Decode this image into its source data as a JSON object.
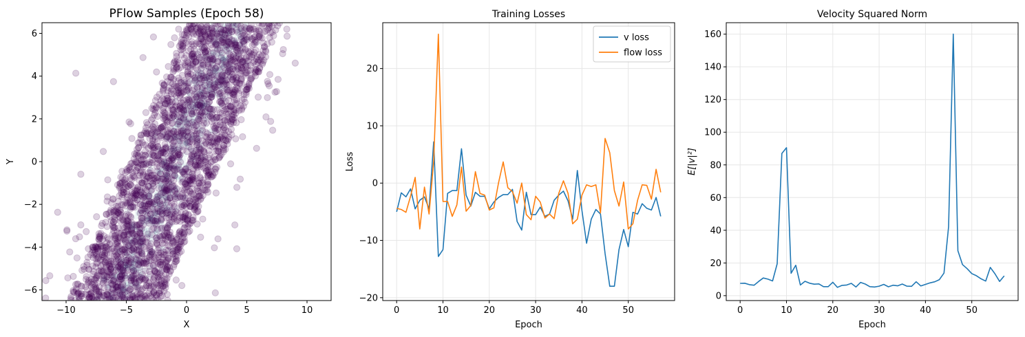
{
  "chart_data": [
    {
      "type": "scatter",
      "title": "PFlow Samples (Epoch 58)",
      "xlabel": "X",
      "ylabel": "Y",
      "xlim": [
        -12,
        12
      ],
      "ylim": [
        -6.5,
        6.5
      ],
      "xticks": [
        -10,
        -5,
        0,
        5,
        10
      ],
      "yticks": [
        -6,
        -4,
        -2,
        0,
        2,
        4,
        6
      ],
      "grid": false,
      "colors": {
        "sample": "#440154",
        "core": "#2a7f8e"
      },
      "band": {
        "center_line": [
          [
            -6.0,
            -6.5
          ],
          [
            4.0,
            6.5
          ]
        ],
        "half_width_x": 3.8
      }
    },
    {
      "type": "line",
      "title": "Training Losses",
      "xlabel": "Epoch",
      "ylabel": "Loss",
      "xlim": [
        -3,
        60
      ],
      "ylim": [
        -20.5,
        28
      ],
      "xticks": [
        0,
        10,
        20,
        30,
        40,
        50
      ],
      "yticks": [
        -20,
        -10,
        0,
        10,
        20
      ],
      "grid": true,
      "legend": "top-right",
      "series": [
        {
          "name": "v loss",
          "color": "#1f77b4",
          "values": [
            -5.0,
            -1.7,
            -2.4,
            -1.0,
            -4.5,
            -3.0,
            -2.4,
            -4.5,
            7.2,
            -12.8,
            -11.6,
            -1.8,
            -1.3,
            -1.3,
            6.0,
            -2.1,
            -4.0,
            -1.6,
            -2.3,
            -2.3,
            -4.5,
            -3.3,
            -2.5,
            -2.0,
            -2.0,
            -1.1,
            -6.7,
            -8.2,
            -1.6,
            -5.5,
            -5.5,
            -4.2,
            -5.8,
            -5.4,
            -3.0,
            -2.1,
            -1.4,
            -3.1,
            -6.3,
            2.2,
            -4.8,
            -10.5,
            -6.3,
            -4.6,
            -5.4,
            -12.3,
            -18.0,
            -18.0,
            -11.6,
            -8.1,
            -11.1,
            -5.1,
            -5.4,
            -3.6,
            -4.4,
            -4.7,
            -2.5,
            -5.8
          ]
        },
        {
          "name": "flow loss",
          "color": "#ff7f0e",
          "values": [
            -4.4,
            -4.6,
            -5.1,
            -2.3,
            1.0,
            -8.0,
            -0.7,
            -5.4,
            3.8,
            26.0,
            -3.2,
            -3.2,
            -5.8,
            -3.8,
            2.8,
            -4.9,
            -3.9,
            2.0,
            -1.8,
            -2.1,
            -4.7,
            -4.3,
            0.1,
            3.7,
            -0.8,
            -1.5,
            -3.5,
            0.0,
            -5.5,
            -6.4,
            -2.3,
            -3.3,
            -6.1,
            -5.4,
            -6.2,
            -1.8,
            0.4,
            -1.8,
            -7.1,
            -6.3,
            -2.1,
            -0.3,
            -0.6,
            -0.3,
            -5.2,
            7.8,
            5.3,
            -1.3,
            -4.0,
            0.2,
            -8.0,
            -7.1,
            -3.0,
            -0.3,
            -0.4,
            -2.8,
            2.4,
            -1.6
          ]
        }
      ]
    },
    {
      "type": "line",
      "title": "Velocity Squared Norm",
      "xlabel": "Epoch",
      "ylabel": "E[|v|²]",
      "xlim": [
        -3,
        60
      ],
      "ylim": [
        -3,
        167
      ],
      "xticks": [
        0,
        10,
        20,
        30,
        40,
        50
      ],
      "yticks": [
        0,
        20,
        40,
        60,
        80,
        100,
        120,
        140,
        160
      ],
      "grid": true,
      "series": [
        {
          "color": "#1f77b4",
          "values": [
            7.5,
            7.6,
            6.7,
            6.4,
            8.7,
            10.8,
            10.1,
            9.0,
            19.5,
            87.0,
            90.5,
            13.7,
            18.6,
            6.5,
            8.8,
            7.6,
            7.0,
            7.2,
            5.5,
            5.5,
            8.2,
            5.1,
            6.3,
            6.5,
            7.5,
            5.3,
            8.1,
            7.1,
            5.5,
            5.3,
            5.8,
            6.9,
            5.4,
            6.4,
            6.0,
            7.1,
            5.8,
            5.7,
            8.5,
            5.9,
            6.9,
            7.8,
            8.5,
            9.8,
            13.8,
            42.2,
            160.0,
            27.5,
            19.0,
            16.5,
            13.5,
            12.2,
            10.3,
            8.9,
            17.3,
            13.4,
            8.7,
            12.1
          ]
        }
      ]
    }
  ]
}
